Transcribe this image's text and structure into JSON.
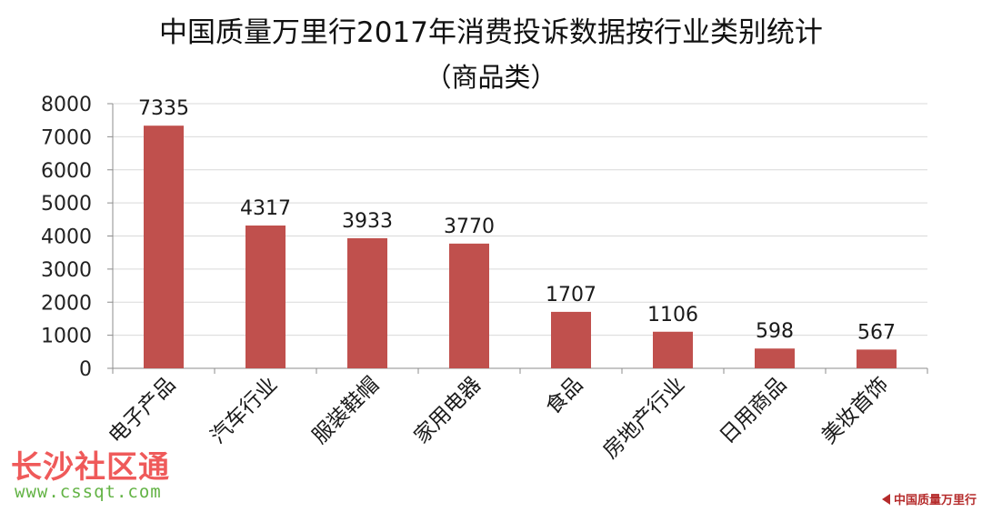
{
  "chart_data": {
    "type": "bar",
    "title": "中国质量万里行2017年消费投诉数据按行业类别统计",
    "subtitle": "（商品类）",
    "xlabel": "",
    "ylabel": "",
    "categories": [
      "电子产品",
      "汽车行业",
      "服装鞋帽",
      "家用电器",
      "食品",
      "房地产行业",
      "日用商品",
      "美妆首饰"
    ],
    "values": [
      7335,
      4317,
      3933,
      3770,
      1707,
      1106,
      598,
      567
    ],
    "ylim": [
      0,
      8000
    ],
    "yticks": [
      0,
      1000,
      2000,
      3000,
      4000,
      5000,
      6000,
      7000,
      8000
    ],
    "grid": true,
    "legend": "none",
    "bar_color": "#c0504d",
    "grid_color": "#d9d9d9"
  },
  "watermark": {
    "site_name": "长沙社区通",
    "site_url": "www.cssqt.com",
    "brand": "中国质量万里行"
  }
}
